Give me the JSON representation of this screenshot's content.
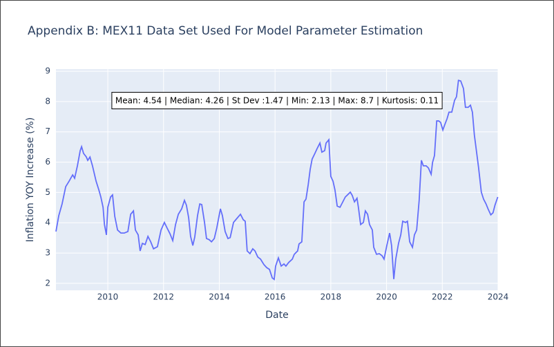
{
  "chart_data": {
    "type": "line",
    "title": "Appendix B: MEX11 Data Set Used For Model Parameter Estimation",
    "x_label": "Date",
    "y_label": "Inflation YOY Increase (%)",
    "annotation": "Mean: 4.54 | Median: 4.26 | St Dev :1.47 | Min: 2.13 | Max: 8.7 | Kurtosis: 0.11",
    "xlim": [
      2008.14,
      2024
    ],
    "ylim": [
      1.77,
      9.07
    ],
    "xticks": [
      2010,
      2012,
      2014,
      2016,
      2018,
      2020,
      2022,
      2024
    ],
    "yticks": [
      2,
      3,
      4,
      5,
      6,
      7,
      8,
      9
    ],
    "grid": true,
    "x": [
      2008.14,
      2008.24,
      2008.36,
      2008.49,
      2008.61,
      2008.74,
      2008.81,
      2008.91,
      2009.01,
      2009.06,
      2009.13,
      2009.23,
      2009.28,
      2009.36,
      2009.45,
      2009.58,
      2009.68,
      2009.75,
      2009.83,
      2009.88,
      2009.95,
      2010.0,
      2010.1,
      2010.17,
      2010.25,
      2010.35,
      2010.47,
      2010.59,
      2010.72,
      2010.82,
      2010.92,
      2010.99,
      2011.09,
      2011.16,
      2011.24,
      2011.34,
      2011.44,
      2011.54,
      2011.64,
      2011.78,
      2011.91,
      2012.03,
      2012.13,
      2012.23,
      2012.33,
      2012.43,
      2012.53,
      2012.65,
      2012.75,
      2012.82,
      2012.9,
      2012.97,
      2013.05,
      2013.12,
      2013.22,
      2013.3,
      2013.37,
      2013.47,
      2013.54,
      2013.64,
      2013.72,
      2013.82,
      2013.91,
      2014.04,
      2014.11,
      2014.21,
      2014.31,
      2014.39,
      2014.51,
      2014.61,
      2014.76,
      2014.86,
      2014.93,
      2015.0,
      2015.1,
      2015.2,
      2015.28,
      2015.38,
      2015.48,
      2015.6,
      2015.7,
      2015.8,
      2015.9,
      2015.97,
      2016.02,
      2016.12,
      2016.22,
      2016.32,
      2016.39,
      2016.49,
      2016.62,
      2016.69,
      2016.81,
      2016.86,
      2016.96,
      2017.04,
      2017.11,
      2017.19,
      2017.26,
      2017.33,
      2017.43,
      2017.51,
      2017.61,
      2017.68,
      2017.78,
      2017.83,
      2017.93,
      2018.0,
      2018.08,
      2018.15,
      2018.23,
      2018.33,
      2018.42,
      2018.52,
      2018.6,
      2018.7,
      2018.77,
      2018.85,
      2018.94,
      2018.99,
      2019.07,
      2019.17,
      2019.24,
      2019.32,
      2019.39,
      2019.49,
      2019.54,
      2019.64,
      2019.74,
      2019.84,
      2019.91,
      2020.01,
      2020.11,
      2020.18,
      2020.26,
      2020.33,
      2020.43,
      2020.51,
      2020.58,
      2020.68,
      2020.75,
      2020.83,
      2020.93,
      2021.0,
      2021.08,
      2021.17,
      2021.25,
      2021.32,
      2021.42,
      2021.5,
      2021.6,
      2021.65,
      2021.72,
      2021.8,
      2021.87,
      2021.94,
      2022.02,
      2022.09,
      2022.17,
      2022.24,
      2022.34,
      2022.44,
      2022.51,
      2022.58,
      2022.66,
      2022.76,
      2022.83,
      2022.93,
      2023.01,
      2023.08,
      2023.15,
      2023.23,
      2023.3,
      2023.4,
      2023.48,
      2023.57,
      2023.64,
      2023.74,
      2023.82,
      2023.89,
      2023.99
    ],
    "series": [
      {
        "name": "Inflation",
        "color": "#636efa",
        "values": [
          3.71,
          4.23,
          4.62,
          5.19,
          5.37,
          5.58,
          5.47,
          5.88,
          6.38,
          6.51,
          6.29,
          6.17,
          6.06,
          6.17,
          5.88,
          5.37,
          5.08,
          4.85,
          4.51,
          3.94,
          3.6,
          4.51,
          4.85,
          4.92,
          4.21,
          3.76,
          3.66,
          3.66,
          3.71,
          4.28,
          4.39,
          3.76,
          3.6,
          3.07,
          3.32,
          3.28,
          3.55,
          3.37,
          3.14,
          3.21,
          3.76,
          4.01,
          3.82,
          3.64,
          3.41,
          3.94,
          4.28,
          4.46,
          4.74,
          4.58,
          4.17,
          3.55,
          3.25,
          3.53,
          4.24,
          4.62,
          4.6,
          4.01,
          3.48,
          3.44,
          3.37,
          3.48,
          3.83,
          4.46,
          4.24,
          3.71,
          3.48,
          3.51,
          4.01,
          4.12,
          4.28,
          4.1,
          4.05,
          3.07,
          2.98,
          3.14,
          3.07,
          2.87,
          2.8,
          2.62,
          2.52,
          2.46,
          2.18,
          2.13,
          2.57,
          2.84,
          2.57,
          2.64,
          2.57,
          2.69,
          2.8,
          2.96,
          3.07,
          3.3,
          3.37,
          4.69,
          4.78,
          5.26,
          5.76,
          6.1,
          6.29,
          6.45,
          6.63,
          6.33,
          6.38,
          6.63,
          6.74,
          5.53,
          5.37,
          5.08,
          4.55,
          4.51,
          4.67,
          4.85,
          4.92,
          5.01,
          4.9,
          4.69,
          4.81,
          4.51,
          3.94,
          4.01,
          4.39,
          4.28,
          3.94,
          3.76,
          3.19,
          2.96,
          2.98,
          2.91,
          2.8,
          3.25,
          3.66,
          3.25,
          2.14,
          2.8,
          3.32,
          3.6,
          4.05,
          4.01,
          4.05,
          3.37,
          3.19,
          3.6,
          3.76,
          4.74,
          6.06,
          5.88,
          5.88,
          5.81,
          5.6,
          5.99,
          6.22,
          7.36,
          7.36,
          7.31,
          7.06,
          7.24,
          7.43,
          7.65,
          7.65,
          8.04,
          8.16,
          8.7,
          8.68,
          8.43,
          7.81,
          7.81,
          7.88,
          7.65,
          6.9,
          6.33,
          5.83,
          5.01,
          4.78,
          4.62,
          4.46,
          4.26,
          4.33,
          4.58,
          4.85
        ]
      }
    ]
  }
}
